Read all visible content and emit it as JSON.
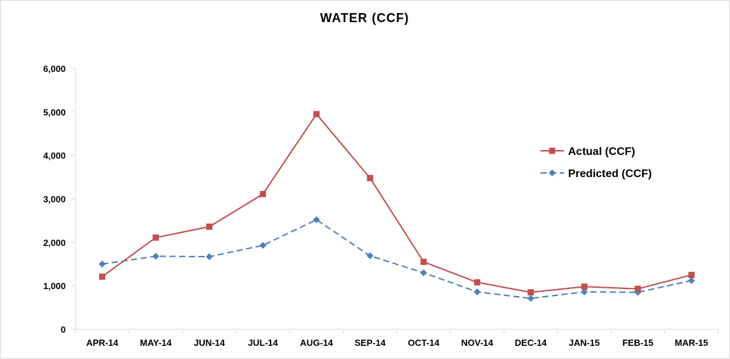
{
  "chart_data": {
    "type": "line",
    "title": "WATER (CCF)",
    "xlabel": "",
    "ylabel": "",
    "categories": [
      "APR-14",
      "MAY-14",
      "JUN-14",
      "JUL-14",
      "AUG-14",
      "SEP-14",
      "OCT-14",
      "NOV-14",
      "DEC-14",
      "JAN-15",
      "FEB-15",
      "MAR-15"
    ],
    "ylim": [
      0,
      6000
    ],
    "yticks": [
      0,
      1000,
      2000,
      3000,
      4000,
      5000,
      6000
    ],
    "ytick_labels": [
      "0",
      "1,000",
      "2,000",
      "3,000",
      "4,000",
      "5,000",
      "6,000"
    ],
    "grid": false,
    "legend_position": "right",
    "series": [
      {
        "name": "Actual (CCF)",
        "color": "#c0504d",
        "marker": "square",
        "line_style": "solid",
        "values": [
          1210,
          2110,
          2360,
          3110,
          4950,
          3480,
          1550,
          1080,
          850,
          980,
          930,
          1250
        ]
      },
      {
        "name": "Predicted (CCF)",
        "color": "#4f81bd",
        "marker": "diamond",
        "line_style": "dashed",
        "values": [
          1500,
          1680,
          1670,
          1930,
          2520,
          1690,
          1300,
          860,
          710,
          860,
          850,
          1120
        ]
      }
    ]
  }
}
